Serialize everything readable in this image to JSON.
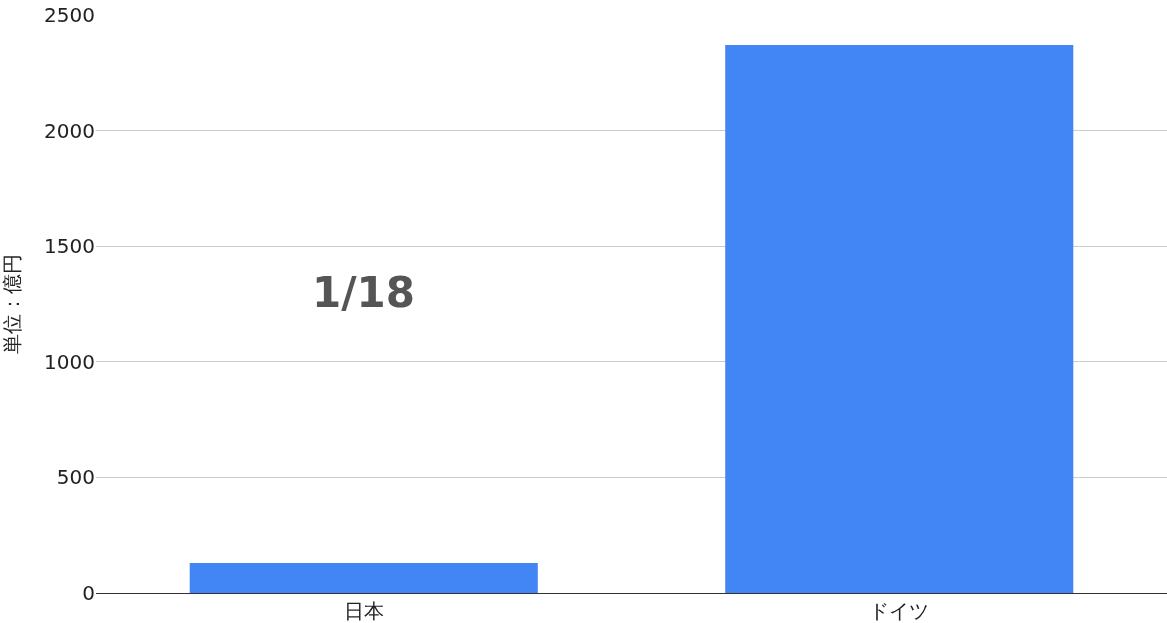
{
  "chart_data": {
    "type": "bar",
    "categories": [
      "日本",
      "ドイツ"
    ],
    "values": [
      130,
      2370
    ],
    "color": "#4285f4",
    "ylabel": "単位：億円",
    "ylim": [
      0,
      2500
    ],
    "yticks": [
      0,
      500,
      1000,
      1500,
      2000,
      2500
    ],
    "grid": "y",
    "annotations": [
      "1/18"
    ]
  }
}
